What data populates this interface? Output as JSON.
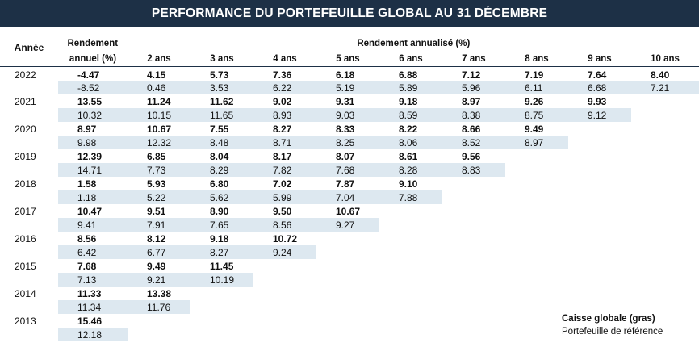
{
  "title": "PERFORMANCE DU PORTEFEUILLE GLOBAL AU 31 DÉCEMBRE",
  "headers": {
    "annee": "Année",
    "rendement_line1": "Rendement",
    "rendement_line2": "annuel (%)",
    "annualise": "Rendement  annualisé (%)",
    "periods": [
      "2 ans",
      "3 ans",
      "4 ans",
      "5 ans",
      "6 ans",
      "7 ans",
      "8 ans",
      "9 ans",
      "10 ans"
    ]
  },
  "rows": [
    {
      "year": "2022",
      "caisse": [
        "-4.47",
        "4.15",
        "5.73",
        "7.36",
        "6.18",
        "6.88",
        "7.12",
        "7.19",
        "7.64",
        "8.40"
      ],
      "reference": [
        "-8.52",
        "0.46",
        "3.53",
        "6.22",
        "5.19",
        "5.89",
        "5.96",
        "6.11",
        "6.68",
        "7.21"
      ]
    },
    {
      "year": "2021",
      "caisse": [
        "13.55",
        "11.24",
        "11.62",
        "9.02",
        "9.31",
        "9.18",
        "8.97",
        "9.26",
        "9.93"
      ],
      "reference": [
        "10.32",
        "10.15",
        "11.65",
        "8.93",
        "9.03",
        "8.59",
        "8.38",
        "8.75",
        "9.12"
      ]
    },
    {
      "year": "2020",
      "caisse": [
        "8.97",
        "10.67",
        "7.55",
        "8.27",
        "8.33",
        "8.22",
        "8.66",
        "9.49"
      ],
      "reference": [
        "9.98",
        "12.32",
        "8.48",
        "8.71",
        "8.25",
        "8.06",
        "8.52",
        "8.97"
      ]
    },
    {
      "year": "2019",
      "caisse": [
        "12.39",
        "6.85",
        "8.04",
        "8.17",
        "8.07",
        "8.61",
        "9.56"
      ],
      "reference": [
        "14.71",
        "7.73",
        "8.29",
        "7.82",
        "7.68",
        "8.28",
        "8.83"
      ]
    },
    {
      "year": "2018",
      "caisse": [
        "1.58",
        "5.93",
        "6.80",
        "7.02",
        "7.87",
        "9.10"
      ],
      "reference": [
        "1.18",
        "5.22",
        "5.62",
        "5.99",
        "7.04",
        "7.88"
      ]
    },
    {
      "year": "2017",
      "caisse": [
        "10.47",
        "9.51",
        "8.90",
        "9.50",
        "10.67"
      ],
      "reference": [
        "9.41",
        "7.91",
        "7.65",
        "8.56",
        "9.27"
      ]
    },
    {
      "year": "2016",
      "caisse": [
        "8.56",
        "8.12",
        "9.18",
        "10.72"
      ],
      "reference": [
        "6.42",
        "6.77",
        "8.27",
        "9.24"
      ]
    },
    {
      "year": "2015",
      "caisse": [
        "7.68",
        "9.49",
        "11.45"
      ],
      "reference": [
        "7.13",
        "9.21",
        "10.19"
      ]
    },
    {
      "year": "2014",
      "caisse": [
        "11.33",
        "13.38"
      ],
      "reference": [
        "11.34",
        "11.76"
      ]
    },
    {
      "year": "2013",
      "caisse": [
        "15.46"
      ],
      "reference": [
        "12.18"
      ]
    }
  ],
  "legend": {
    "bold_label": "Caisse globale (gras)",
    "normal_label": "Portefeuille de référence"
  },
  "colors": {
    "title_bg": "#1d3046",
    "reference_row_bg": "#dde8f0"
  }
}
